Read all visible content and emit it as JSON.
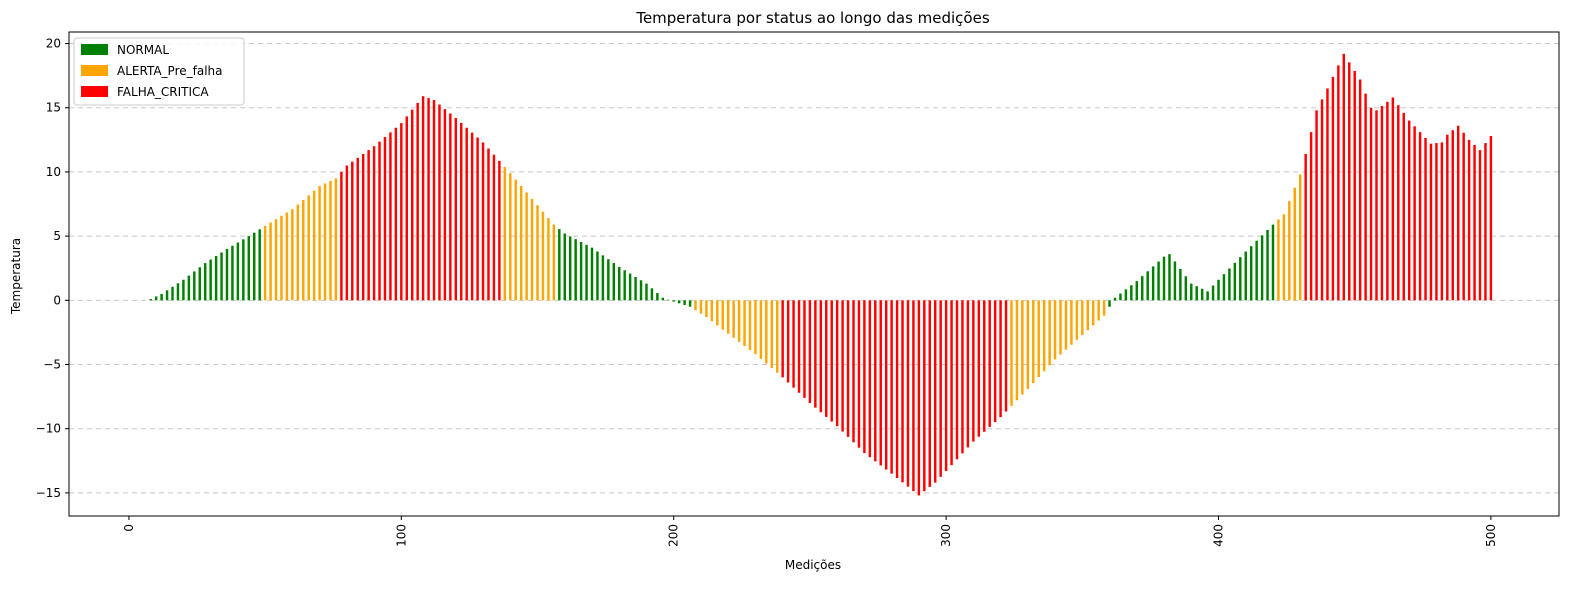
{
  "chart_data": {
    "type": "bar",
    "title": "Temperatura por status ao longo das medições",
    "xlabel": "Medições",
    "ylabel": "Temperatura",
    "xlim": [
      -22,
      525
    ],
    "ylim": [
      -16.8,
      20.9
    ],
    "x_ticks": [
      0,
      100,
      200,
      300,
      400,
      500
    ],
    "y_ticks": [
      -15,
      -10,
      -5,
      0,
      5,
      10,
      15,
      20
    ],
    "y_tick_labels": [
      "−15",
      "−10",
      "−5",
      "0",
      "5",
      "10",
      "15",
      "20"
    ],
    "x_tick_labels": [
      "0",
      "100",
      "200",
      "300",
      "400",
      "500"
    ],
    "grid": "y dashed",
    "legend_position": "top-left",
    "colors": {
      "NORMAL": "#008000",
      "ALERTA_Pre_falha": "#ffa500",
      "FALHA_CRITICA": "#ff0000"
    },
    "legend": [
      {
        "label": "NORMAL",
        "color": "#008000"
      },
      {
        "label": "ALERTA_Pre_falha",
        "color": "#ffa500"
      },
      {
        "label": "FALHA_CRITICA",
        "color": "#ff0000"
      }
    ],
    "bar_spacing": 2,
    "profile": [
      [
        8,
        0.1
      ],
      [
        12,
        0.5
      ],
      [
        20,
        1.6
      ],
      [
        28,
        2.9
      ],
      [
        36,
        4.0
      ],
      [
        44,
        5.0
      ],
      [
        50,
        5.8
      ],
      [
        60,
        7.1
      ],
      [
        70,
        8.9
      ],
      [
        76,
        9.5
      ],
      [
        80,
        10.5
      ],
      [
        90,
        12.0
      ],
      [
        100,
        13.8
      ],
      [
        108,
        15.9
      ],
      [
        112,
        15.6
      ],
      [
        120,
        14.2
      ],
      [
        130,
        12.3
      ],
      [
        140,
        9.9
      ],
      [
        150,
        7.4
      ],
      [
        156,
        5.9
      ],
      [
        160,
        5.2
      ],
      [
        170,
        4.1
      ],
      [
        180,
        2.6
      ],
      [
        190,
        1.3
      ],
      [
        196,
        0.2
      ],
      [
        200,
        -0.1
      ],
      [
        206,
        -0.5
      ],
      [
        212,
        -1.3
      ],
      [
        220,
        -2.6
      ],
      [
        230,
        -4.2
      ],
      [
        240,
        -6.0
      ],
      [
        250,
        -8.0
      ],
      [
        260,
        -9.8
      ],
      [
        270,
        -11.9
      ],
      [
        280,
        -13.5
      ],
      [
        290,
        -15.2
      ],
      [
        296,
        -14.2
      ],
      [
        300,
        -13.3
      ],
      [
        310,
        -11.0
      ],
      [
        320,
        -9.1
      ],
      [
        330,
        -6.9
      ],
      [
        340,
        -4.6
      ],
      [
        350,
        -2.7
      ],
      [
        358,
        -1.2
      ],
      [
        362,
        0.2
      ],
      [
        370,
        1.5
      ],
      [
        380,
        3.4
      ],
      [
        382,
        3.6
      ],
      [
        390,
        1.3
      ],
      [
        396,
        0.7
      ],
      [
        400,
        1.6
      ],
      [
        410,
        3.8
      ],
      [
        420,
        5.9
      ],
      [
        424,
        6.7
      ],
      [
        430,
        9.8
      ],
      [
        432,
        11.4
      ],
      [
        436,
        14.8
      ],
      [
        440,
        16.5
      ],
      [
        446,
        19.2
      ],
      [
        452,
        17.2
      ],
      [
        456,
        15.0
      ],
      [
        458,
        14.8
      ],
      [
        464,
        15.8
      ],
      [
        470,
        14.0
      ],
      [
        478,
        12.2
      ],
      [
        482,
        12.3
      ],
      [
        484,
        12.9
      ],
      [
        488,
        13.6
      ],
      [
        492,
        12.5
      ],
      [
        496,
        11.7
      ],
      [
        500,
        12.8
      ]
    ],
    "status_segments": [
      {
        "from": 8,
        "to": 48,
        "status": "NORMAL"
      },
      {
        "from": 49,
        "to": 76,
        "status": "ALERTA_Pre_falha"
      },
      {
        "from": 77,
        "to": 137,
        "status": "FALHA_CRITICA"
      },
      {
        "from": 138,
        "to": 156,
        "status": "ALERTA_Pre_falha"
      },
      {
        "from": 157,
        "to": 207,
        "status": "NORMAL"
      },
      {
        "from": 208,
        "to": 239,
        "status": "ALERTA_Pre_falha"
      },
      {
        "from": 240,
        "to": 323,
        "status": "FALHA_CRITICA"
      },
      {
        "from": 324,
        "to": 359,
        "status": "ALERTA_Pre_falha"
      },
      {
        "from": 360,
        "to": 420,
        "status": "NORMAL"
      },
      {
        "from": 421,
        "to": 430,
        "status": "ALERTA_Pre_falha"
      },
      {
        "from": 431,
        "to": 500,
        "status": "FALHA_CRITICA"
      }
    ]
  }
}
